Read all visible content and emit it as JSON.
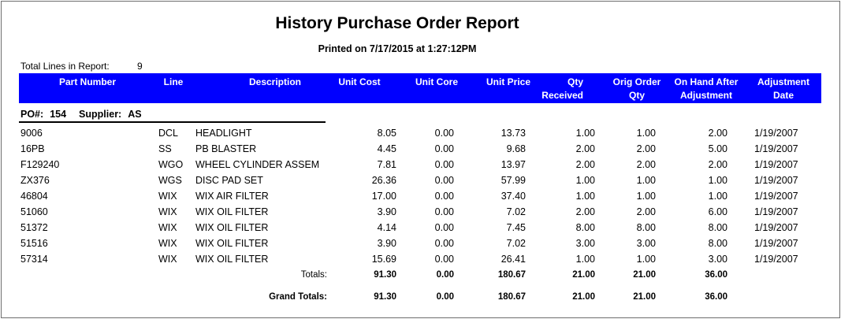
{
  "report": {
    "title": "History Purchase Order Report",
    "printed": "Printed on 7/17/2015 at  1:27:12PM",
    "total_lines_label": "Total Lines in Report:",
    "total_lines_value": "9"
  },
  "columns": {
    "part_number": "Part Number",
    "line": "Line",
    "description": "Description",
    "unit_cost": "Unit Cost",
    "unit_core": "Unit Core",
    "unit_price": "Unit Price",
    "qty_received_1": "Qty",
    "qty_received_2": "Received",
    "orig_order_1": "Orig Order",
    "orig_order_2": "Qty",
    "on_hand_1": "On Hand After",
    "on_hand_2": "Adjustment",
    "adj_date_1": "Adjustment",
    "adj_date_2": "Date"
  },
  "group": {
    "po_label": "PO#:",
    "po_value": "154",
    "supplier_label": "Supplier:",
    "supplier_value": "AS"
  },
  "rows": [
    {
      "part": "9006",
      "line": "DCL",
      "desc": "HEADLIGHT",
      "cost": "8.05",
      "core": "0.00",
      "price": "13.73",
      "qty_rec": "1.00",
      "orig_qty": "1.00",
      "on_hand": "2.00",
      "date": "1/19/2007"
    },
    {
      "part": "16PB",
      "line": "SS",
      "desc": "PB BLASTER",
      "cost": "4.45",
      "core": "0.00",
      "price": "9.68",
      "qty_rec": "2.00",
      "orig_qty": "2.00",
      "on_hand": "5.00",
      "date": "1/19/2007"
    },
    {
      "part": "F129240",
      "line": "WGO",
      "desc": "WHEEL CYLINDER ASSEM",
      "cost": "7.81",
      "core": "0.00",
      "price": "13.97",
      "qty_rec": "2.00",
      "orig_qty": "2.00",
      "on_hand": "2.00",
      "date": "1/19/2007"
    },
    {
      "part": "ZX376",
      "line": "WGS",
      "desc": "DISC PAD SET",
      "cost": "26.36",
      "core": "0.00",
      "price": "57.99",
      "qty_rec": "1.00",
      "orig_qty": "1.00",
      "on_hand": "1.00",
      "date": "1/19/2007"
    },
    {
      "part": "46804",
      "line": "WIX",
      "desc": "WIX AIR FILTER",
      "cost": "17.00",
      "core": "0.00",
      "price": "37.40",
      "qty_rec": "1.00",
      "orig_qty": "1.00",
      "on_hand": "1.00",
      "date": "1/19/2007"
    },
    {
      "part": "51060",
      "line": "WIX",
      "desc": "WIX OIL FILTER",
      "cost": "3.90",
      "core": "0.00",
      "price": "7.02",
      "qty_rec": "2.00",
      "orig_qty": "2.00",
      "on_hand": "6.00",
      "date": "1/19/2007"
    },
    {
      "part": "51372",
      "line": "WIX",
      "desc": "WIX OIL FILTER",
      "cost": "4.14",
      "core": "0.00",
      "price": "7.45",
      "qty_rec": "8.00",
      "orig_qty": "8.00",
      "on_hand": "8.00",
      "date": "1/19/2007"
    },
    {
      "part": "51516",
      "line": "WIX",
      "desc": "WIX OIL FILTER",
      "cost": "3.90",
      "core": "0.00",
      "price": "7.02",
      "qty_rec": "3.00",
      "orig_qty": "3.00",
      "on_hand": "8.00",
      "date": "1/19/2007"
    },
    {
      "part": "57314",
      "line": "WIX",
      "desc": "WIX OIL FILTER",
      "cost": "15.69",
      "core": "0.00",
      "price": "26.41",
      "qty_rec": "1.00",
      "orig_qty": "1.00",
      "on_hand": "3.00",
      "date": "1/19/2007"
    }
  ],
  "totals": {
    "label": "Totals:",
    "cost": "91.30",
    "core": "0.00",
    "price": "180.67",
    "qty_rec": "21.00",
    "orig_qty": "21.00",
    "on_hand": "36.00"
  },
  "grand_totals": {
    "label": "Grand Totals:",
    "cost": "91.30",
    "core": "0.00",
    "price": "180.67",
    "qty_rec": "21.00",
    "orig_qty": "21.00",
    "on_hand": "36.00"
  },
  "colors": {
    "header_bg": "#0000ff",
    "header_text": "#ffffff",
    "frame": "#6e6e6e"
  }
}
